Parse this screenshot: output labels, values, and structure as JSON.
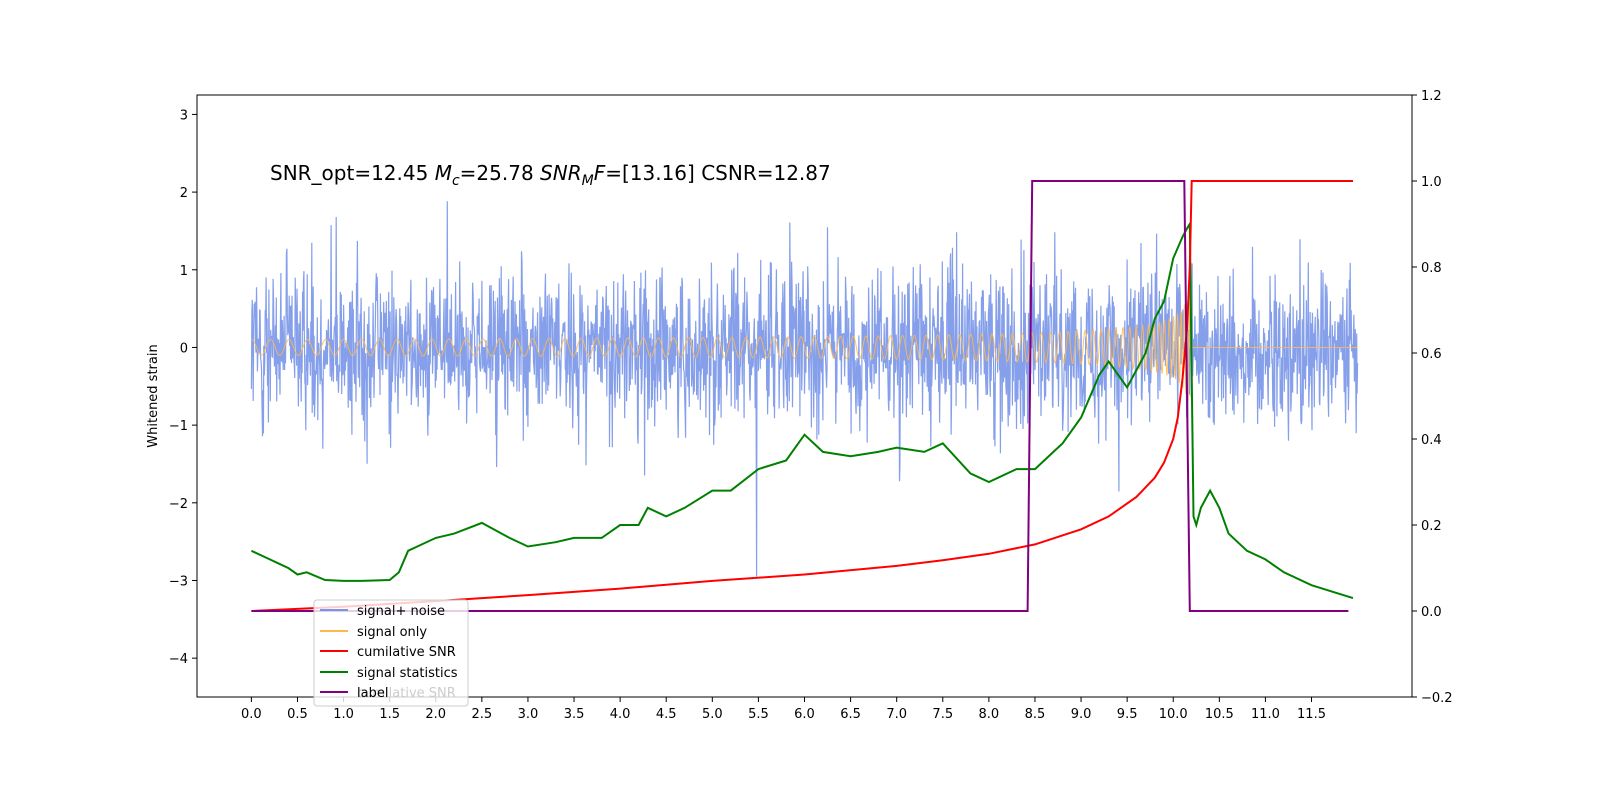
{
  "chart_data": {
    "type": "line",
    "title": "",
    "annotation": {
      "prefix": "SNR_opt=12.45 ",
      "m": "M",
      "m_sub": "c",
      "mid": "=25.78  ",
      "snr": "SNR",
      "snr_sub": "M",
      "f": "F",
      "suffix": "=[13.16] CSNR=12.87"
    },
    "xlabel": "",
    "ylabel": "Whitened strain",
    "ylabel_right": "",
    "xlim": [
      -0.59,
      12.59
    ],
    "ylim": [
      -4.5,
      3.25
    ],
    "ylim_right": [
      -0.2,
      1.2
    ],
    "x_ticks": [
      "0.0",
      "0.5",
      "1.0",
      "1.5",
      "2.0",
      "2.5",
      "3.0",
      "3.5",
      "4.0",
      "4.5",
      "5.0",
      "5.5",
      "6.0",
      "6.5",
      "7.0",
      "7.5",
      "8.0",
      "8.5",
      "9.0",
      "9.5",
      "10.0",
      "10.5",
      "11.0",
      "11.5"
    ],
    "y_ticks": [
      "3",
      "2",
      "1",
      "0",
      "−1",
      "−2",
      "−3",
      "−4"
    ],
    "y_ticks_right": [
      "1.2",
      "1.0",
      "0.8",
      "0.6",
      "0.4",
      "0.2",
      "0.0",
      "−0.2"
    ],
    "colors": {
      "noise": "#7895e8",
      "signal": "#ffb84d",
      "cumulative": "#ff0000",
      "statistics": "#008000",
      "label": "#800080"
    },
    "series": [
      {
        "name": "signal+ noise",
        "axis": "left",
        "note": "noisy whitened strain, amplitude about ±1.5 with spikes up to ±2.9, from 0.0 to 12.0"
      },
      {
        "name": "signal only",
        "axis": "left",
        "note": "chirp waveform, near zero then growing to about ±0.9 peak at 10.17, then flat"
      },
      {
        "name": "cumilative SNR",
        "axis": "right",
        "x": [
          0.0,
          1.0,
          2.0,
          3.0,
          4.0,
          5.0,
          6.0,
          7.0,
          7.5,
          8.0,
          8.5,
          9.0,
          9.3,
          9.6,
          9.8,
          9.9,
          10.0,
          10.05,
          10.1,
          10.15,
          10.18,
          10.2,
          11.95
        ],
        "y": [
          0.0,
          0.01,
          0.023,
          0.037,
          0.052,
          0.07,
          0.085,
          0.105,
          0.118,
          0.133,
          0.155,
          0.19,
          0.22,
          0.265,
          0.31,
          0.345,
          0.4,
          0.45,
          0.54,
          0.66,
          0.8,
          1.0,
          1.0
        ]
      },
      {
        "name": "signal statistics",
        "axis": "right",
        "x": [
          0.0,
          0.2,
          0.3,
          0.4,
          0.5,
          0.6,
          0.8,
          1.0,
          1.2,
          1.5,
          1.6,
          1.7,
          1.8,
          2.0,
          2.2,
          2.5,
          2.8,
          3.0,
          3.3,
          3.5,
          3.8,
          4.0,
          4.2,
          4.3,
          4.5,
          4.7,
          5.0,
          5.2,
          5.5,
          5.8,
          5.9,
          6.0,
          6.2,
          6.5,
          6.8,
          7.0,
          7.3,
          7.5,
          7.8,
          8.0,
          8.3,
          8.5,
          8.7,
          8.8,
          9.0,
          9.1,
          9.2,
          9.3,
          9.5,
          9.7,
          9.8,
          9.9,
          10.0,
          10.1,
          10.15,
          10.18,
          10.22,
          10.25,
          10.3,
          10.4,
          10.5,
          10.6,
          10.8,
          11.0,
          11.2,
          11.5,
          11.8,
          11.95
        ],
        "y": [
          0.14,
          0.12,
          0.11,
          0.1,
          0.085,
          0.09,
          0.072,
          0.07,
          0.07,
          0.072,
          0.09,
          0.14,
          0.15,
          0.17,
          0.18,
          0.205,
          0.17,
          0.15,
          0.16,
          0.17,
          0.17,
          0.2,
          0.2,
          0.24,
          0.22,
          0.24,
          0.28,
          0.28,
          0.33,
          0.35,
          0.38,
          0.41,
          0.37,
          0.36,
          0.37,
          0.38,
          0.37,
          0.39,
          0.32,
          0.3,
          0.33,
          0.33,
          0.37,
          0.39,
          0.45,
          0.5,
          0.55,
          0.58,
          0.52,
          0.6,
          0.68,
          0.72,
          0.82,
          0.87,
          0.89,
          0.9,
          0.22,
          0.2,
          0.24,
          0.28,
          0.24,
          0.18,
          0.14,
          0.12,
          0.09,
          0.06,
          0.04,
          0.03
        ]
      },
      {
        "name": "label",
        "axis": "right",
        "x": [
          0.0,
          8.42,
          8.47,
          10.12,
          10.18,
          11.9
        ],
        "y": [
          0.0,
          0.0,
          1.0,
          1.0,
          0.0,
          0.0
        ]
      }
    ],
    "legend": {
      "placement": "lower-left",
      "ghost_text": "cumilative SNR"
    }
  }
}
